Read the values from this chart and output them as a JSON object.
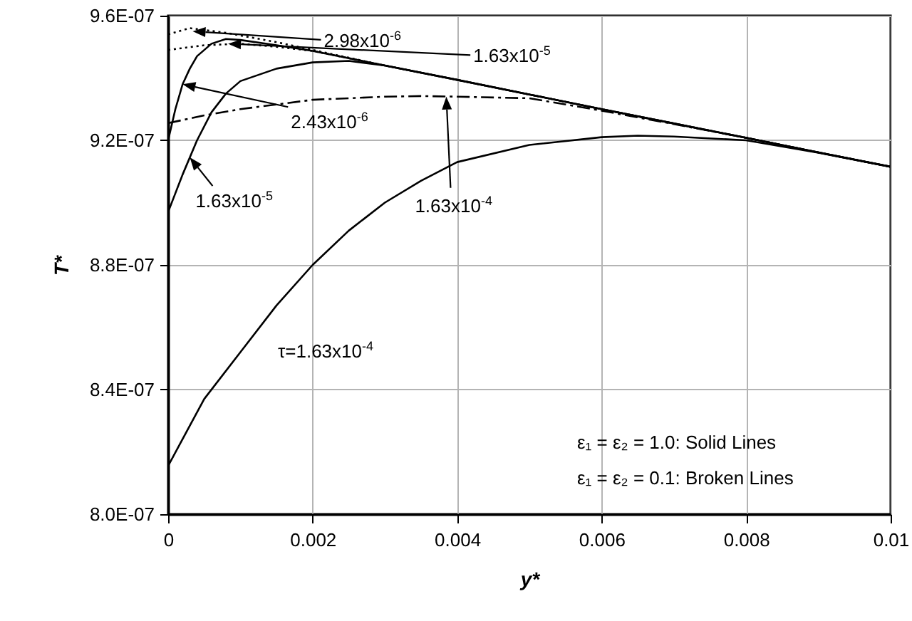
{
  "chart_data": {
    "type": "line",
    "xlabel": "y*",
    "ylabel": "T*",
    "xlim": [
      0,
      0.01
    ],
    "xticks": [
      0,
      0.002,
      0.004,
      0.006,
      0.008,
      0.01
    ],
    "ylim": [
      8e-07,
      9.6e-07
    ],
    "yticks": [
      {
        "value": 8e-07,
        "label": "8.0E-07"
      },
      {
        "value": 8.4e-07,
        "label": "8.4E-07"
      },
      {
        "value": 8.8e-07,
        "label": "8.8E-07"
      },
      {
        "value": 9.2e-07,
        "label": "9.2E-07"
      },
      {
        "value": 9.6e-07,
        "label": "9.6E-07"
      }
    ],
    "grid": true,
    "series": [
      {
        "color": "#000000",
        "line_style": "solid",
        "x": [
          0,
          0.0005,
          0.001,
          0.0015,
          0.002,
          0.0025,
          0.003,
          0.0035,
          0.004,
          0.005,
          0.006,
          0.0065,
          0.007,
          0.008,
          0.009,
          0.01
        ],
        "values": [
          8.155e-07,
          8.37e-07,
          8.52e-07,
          8.67e-07,
          8.8e-07,
          8.91e-07,
          9e-07,
          9.07e-07,
          9.13e-07,
          9.185e-07,
          9.21e-07,
          9.215e-07,
          9.212e-07,
          9.2e-07,
          9.16e-07,
          9.115e-07
        ]
      },
      {
        "color": "#000000",
        "line_style": "solid",
        "x": [
          0,
          0.0001,
          0.0002,
          0.0004,
          0.0006,
          0.0008,
          0.001,
          0.0015,
          0.002,
          0.0025,
          0.003,
          0.004,
          0.005,
          0.006,
          0.007,
          0.008,
          0.009,
          0.01
        ],
        "values": [
          8.97e-07,
          9.03e-07,
          9.09e-07,
          9.2e-07,
          9.29e-07,
          9.35e-07,
          9.39e-07,
          9.43e-07,
          9.45e-07,
          9.455e-07,
          9.44e-07,
          9.394e-07,
          9.347e-07,
          9.3e-07,
          9.254e-07,
          9.208e-07,
          9.161e-07,
          9.115e-07
        ]
      },
      {
        "color": "#000000",
        "line_style": "solid",
        "x": [
          0,
          0.0001,
          0.0002,
          0.0003,
          0.0004,
          0.0006,
          0.0008,
          0.001,
          0.0015,
          0.002,
          0.003,
          0.004,
          0.005,
          0.006,
          0.007,
          0.008,
          0.009,
          0.01
        ],
        "values": [
          9.2e-07,
          9.3e-07,
          9.38e-07,
          9.43e-07,
          9.47e-07,
          9.51e-07,
          9.525e-07,
          9.522e-07,
          9.505e-07,
          9.487e-07,
          9.44e-07,
          9.394e-07,
          9.347e-07,
          9.3e-07,
          9.254e-07,
          9.208e-07,
          9.161e-07,
          9.115e-07
        ]
      },
      {
        "color": "#000000",
        "line_style": "dotted",
        "x": [
          0,
          0.0003,
          0.0008,
          0.0015,
          0.002,
          0.003,
          0.004,
          0.005,
          0.006,
          0.007,
          0.008,
          0.009,
          0.01
        ],
        "values": [
          9.54e-07,
          9.56e-07,
          9.545e-07,
          9.515e-07,
          9.49e-07,
          9.44e-07,
          9.394e-07,
          9.347e-07,
          9.3e-07,
          9.254e-07,
          9.208e-07,
          9.161e-07,
          9.115e-07
        ]
      },
      {
        "color": "#000000",
        "line_style": "dotted",
        "x": [
          0,
          0.0005,
          0.001,
          0.0015,
          0.002,
          0.003,
          0.004,
          0.005,
          0.006,
          0.007,
          0.008,
          0.009,
          0.01
        ],
        "values": [
          9.49e-07,
          9.505e-07,
          9.51e-07,
          9.5e-07,
          9.487e-07,
          9.44e-07,
          9.394e-07,
          9.347e-07,
          9.3e-07,
          9.254e-07,
          9.208e-07,
          9.161e-07,
          9.115e-07
        ]
      },
      {
        "color": "#000000",
        "line_style": "dashed",
        "x": [
          0,
          0.0005,
          0.001,
          0.002,
          0.003,
          0.0035,
          0.004,
          0.005,
          0.006,
          0.007,
          0.008,
          0.009,
          0.01
        ],
        "values": [
          9.255e-07,
          9.28e-07,
          9.3e-07,
          9.33e-07,
          9.34e-07,
          9.342e-07,
          9.34e-07,
          9.335e-07,
          9.295e-07,
          9.252e-07,
          9.208e-07,
          9.161e-07,
          9.115e-07
        ]
      }
    ],
    "annotations": [
      {
        "text": "2.98x10$^{-6}$",
        "x": 0.00034,
        "y": 9.55e-07
      },
      {
        "text": "1.63x10$^{-5}$",
        "x": 0.00083,
        "y": 9.51e-07
      },
      {
        "text": "2.43x10$^{-6}$",
        "x": 0.0002,
        "y": 9.38e-07
      },
      {
        "text": "1.63x10$^{-5}$",
        "x": 0.0003,
        "y": 9.145e-07
      },
      {
        "text": "1.63x10$^{-4}$",
        "x": 0.00385,
        "y": 9.34e-07
      },
      "τ=1.63x10$^{-4}$",
      "ε₁ = ε₂ = 1.0: Solid Lines",
      "ε₁ = ε₂ = 0.1: Broken Lines"
    ]
  }
}
